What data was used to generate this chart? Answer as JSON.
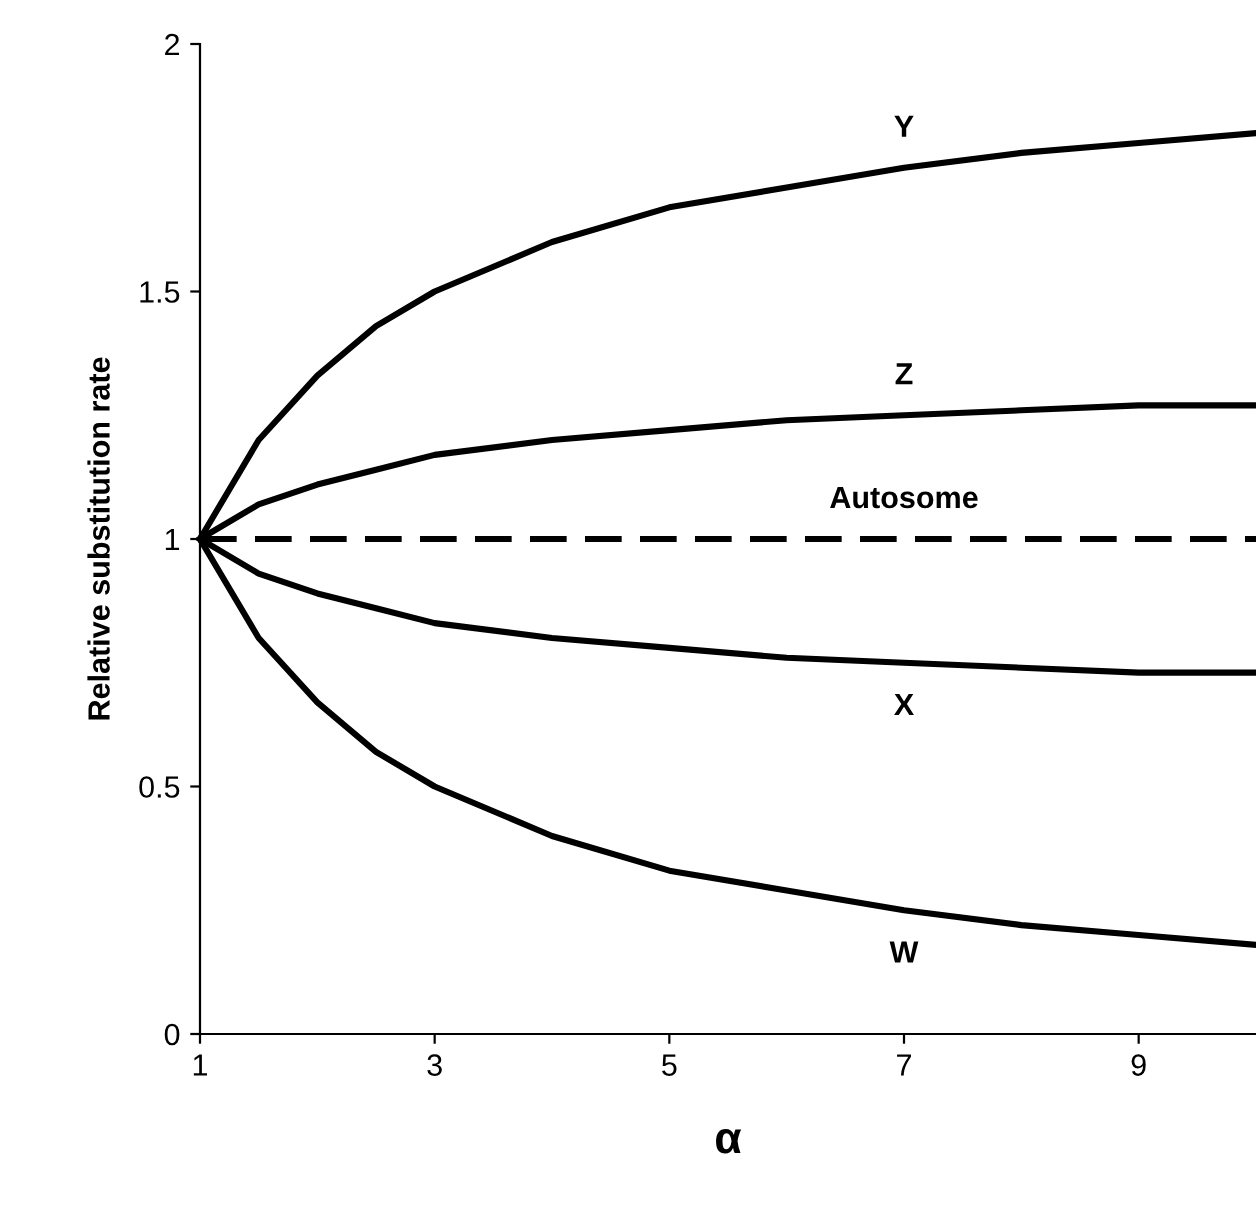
{
  "chart_data": {
    "type": "line",
    "xlabel": "α",
    "ylabel": "Relative substitution rate",
    "x": [
      1,
      1.5,
      2,
      2.5,
      3,
      4,
      5,
      6,
      7,
      8,
      9,
      10
    ],
    "series": [
      {
        "name": "Y",
        "color": "#000000",
        "line_style": "solid",
        "values": [
          1,
          1.2,
          1.33,
          1.43,
          1.5,
          1.6,
          1.67,
          1.71,
          1.75,
          1.78,
          1.8,
          1.82
        ]
      },
      {
        "name": "Z",
        "color": "#000000",
        "line_style": "solid",
        "values": [
          1,
          1.07,
          1.11,
          1.14,
          1.17,
          1.2,
          1.22,
          1.24,
          1.25,
          1.26,
          1.27,
          1.27
        ]
      },
      {
        "name": "Autosome",
        "color": "#000000",
        "line_style": "dashed",
        "values": [
          1,
          1,
          1,
          1,
          1,
          1,
          1,
          1,
          1,
          1,
          1,
          1
        ]
      },
      {
        "name": "X",
        "color": "#000000",
        "line_style": "solid",
        "values": [
          1,
          0.93,
          0.89,
          0.86,
          0.83,
          0.8,
          0.78,
          0.76,
          0.75,
          0.74,
          0.73,
          0.73
        ]
      },
      {
        "name": "W",
        "color": "#000000",
        "line_style": "solid",
        "values": [
          1,
          0.8,
          0.67,
          0.57,
          0.5,
          0.4,
          0.33,
          0.29,
          0.25,
          0.22,
          0.2,
          0.18
        ]
      }
    ],
    "xlim": [
      1,
      10
    ],
    "xticks": [
      1,
      3,
      5,
      7,
      9
    ],
    "ylim": [
      0,
      2
    ],
    "yticks": [
      0,
      0.5,
      1,
      1.5,
      2
    ],
    "grid": false,
    "legend": false,
    "marker": "none"
  }
}
